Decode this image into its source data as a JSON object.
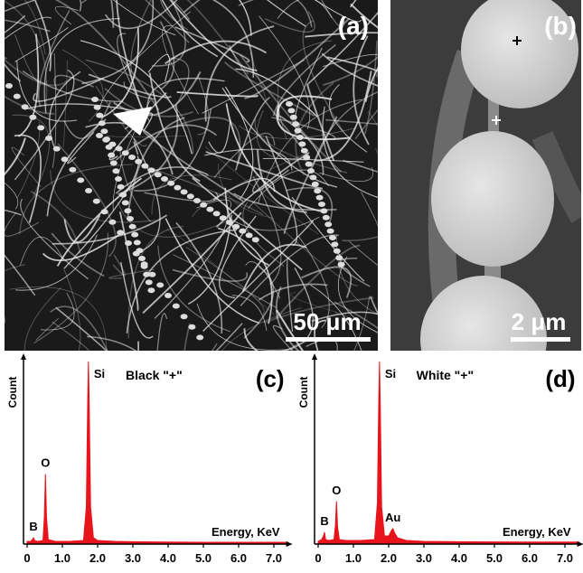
{
  "images": [
    {
      "label": "(a)",
      "scale": "50 μm"
    },
    {
      "label": "(b)",
      "scale": "2 μm"
    }
  ],
  "chart_data": [
    {
      "type": "area",
      "label": "(c)",
      "title": "Black \"+\"",
      "ylabel": "Count",
      "xlabel": "Energy, KeV",
      "color": "#e8141c",
      "xlim": [
        0,
        7.4
      ],
      "ylim": [
        0,
        100
      ],
      "xticks": [
        0,
        {
          "value": 1,
          "label": "1.0"
        },
        {
          "value": 2,
          "label": "2.0"
        },
        {
          "value": 3,
          "label": "3.0"
        },
        {
          "value": 4,
          "label": "4.0"
        },
        {
          "value": 5,
          "label": "5.0"
        },
        {
          "value": 6,
          "label": "6.0"
        },
        {
          "value": 7,
          "label": "7.0"
        }
      ],
      "x": [
        0,
        0.1,
        0.15,
        0.18,
        0.21,
        0.3,
        0.45,
        0.49,
        0.52,
        0.55,
        0.6,
        0.8,
        1.2,
        1.6,
        1.68,
        1.72,
        1.74,
        1.76,
        1.8,
        1.88,
        2.0,
        2.5,
        3.0,
        4.0,
        5.0,
        6.0,
        7.0,
        7.4
      ],
      "values": [
        1,
        1,
        2,
        3,
        1.5,
        1,
        1.5,
        15,
        38,
        14,
        2,
        1,
        1,
        1.5,
        20,
        80,
        100,
        78,
        20,
        3,
        1.5,
        1,
        0.8,
        0.6,
        0.5,
        0.5,
        0.5,
        0.5
      ],
      "annotations": [
        {
          "text": "B",
          "x": 0.18
        },
        {
          "text": "O",
          "x": 0.52
        },
        {
          "text": "Si",
          "x": 1.74
        }
      ]
    },
    {
      "type": "area",
      "label": "(d)",
      "title": "White \"+\"",
      "ylabel": "Count",
      "xlabel": "Energy, KeV",
      "color": "#e8141c",
      "xlim": [
        0,
        7.4
      ],
      "ylim": [
        0,
        100
      ],
      "xticks": [
        0,
        {
          "value": 1,
          "label": "1.0"
        },
        {
          "value": 2,
          "label": "2.0"
        },
        {
          "value": 3,
          "label": "3.0"
        },
        {
          "value": 4,
          "label": "4.0"
        },
        {
          "value": 5,
          "label": "5.0"
        },
        {
          "value": 6,
          "label": "6.0"
        },
        {
          "value": 7,
          "label": "7.0"
        }
      ],
      "x": [
        0,
        0.1,
        0.15,
        0.18,
        0.21,
        0.3,
        0.45,
        0.49,
        0.52,
        0.55,
        0.6,
        0.8,
        1.2,
        1.6,
        1.68,
        1.72,
        1.74,
        1.76,
        1.8,
        1.88,
        2.0,
        2.08,
        2.12,
        2.16,
        2.25,
        2.5,
        3.0,
        4.0,
        5.0,
        6.0,
        7.0,
        7.4
      ],
      "values": [
        1,
        2,
        4,
        6,
        2,
        1.5,
        2,
        10,
        23,
        9,
        2,
        1.5,
        1.5,
        2,
        22,
        80,
        100,
        78,
        20,
        4,
        4,
        7,
        8,
        6,
        3,
        1.5,
        1,
        0.8,
        0.7,
        0.6,
        0.6,
        0.6
      ],
      "annotations": [
        {
          "text": "B",
          "x": 0.18
        },
        {
          "text": "O",
          "x": 0.52
        },
        {
          "text": "Si",
          "x": 1.74
        },
        {
          "text": "Au",
          "x": 2.12
        }
      ]
    }
  ]
}
